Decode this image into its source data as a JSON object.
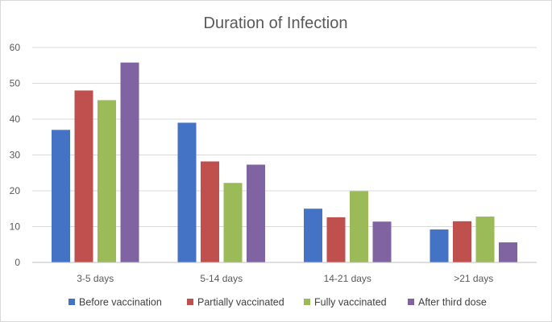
{
  "chart_data": {
    "type": "bar",
    "title": "Duration of Infection",
    "xlabel": "",
    "ylabel": "",
    "categories": [
      "3-5 days",
      "5-14 days",
      "14-21 days",
      ">21 days"
    ],
    "series": [
      {
        "name": "Before vaccination",
        "color": "#4472c4",
        "values": [
          37,
          39,
          15,
          9.2
        ]
      },
      {
        "name": "Partially vaccinated",
        "color": "#c0504d",
        "values": [
          48,
          28.2,
          12.6,
          11.5
        ]
      },
      {
        "name": "Fully vaccinated",
        "color": "#9bbb59",
        "values": [
          45.3,
          22.2,
          19.9,
          12.8
        ]
      },
      {
        "name": "After third dose",
        "color": "#8064a2",
        "values": [
          55.8,
          27.3,
          11.4,
          5.6
        ]
      }
    ],
    "yticks": [
      0,
      10,
      20,
      30,
      40,
      50,
      60
    ],
    "ylim": [
      0,
      60
    ],
    "grid": true,
    "legend_position": "bottom"
  }
}
